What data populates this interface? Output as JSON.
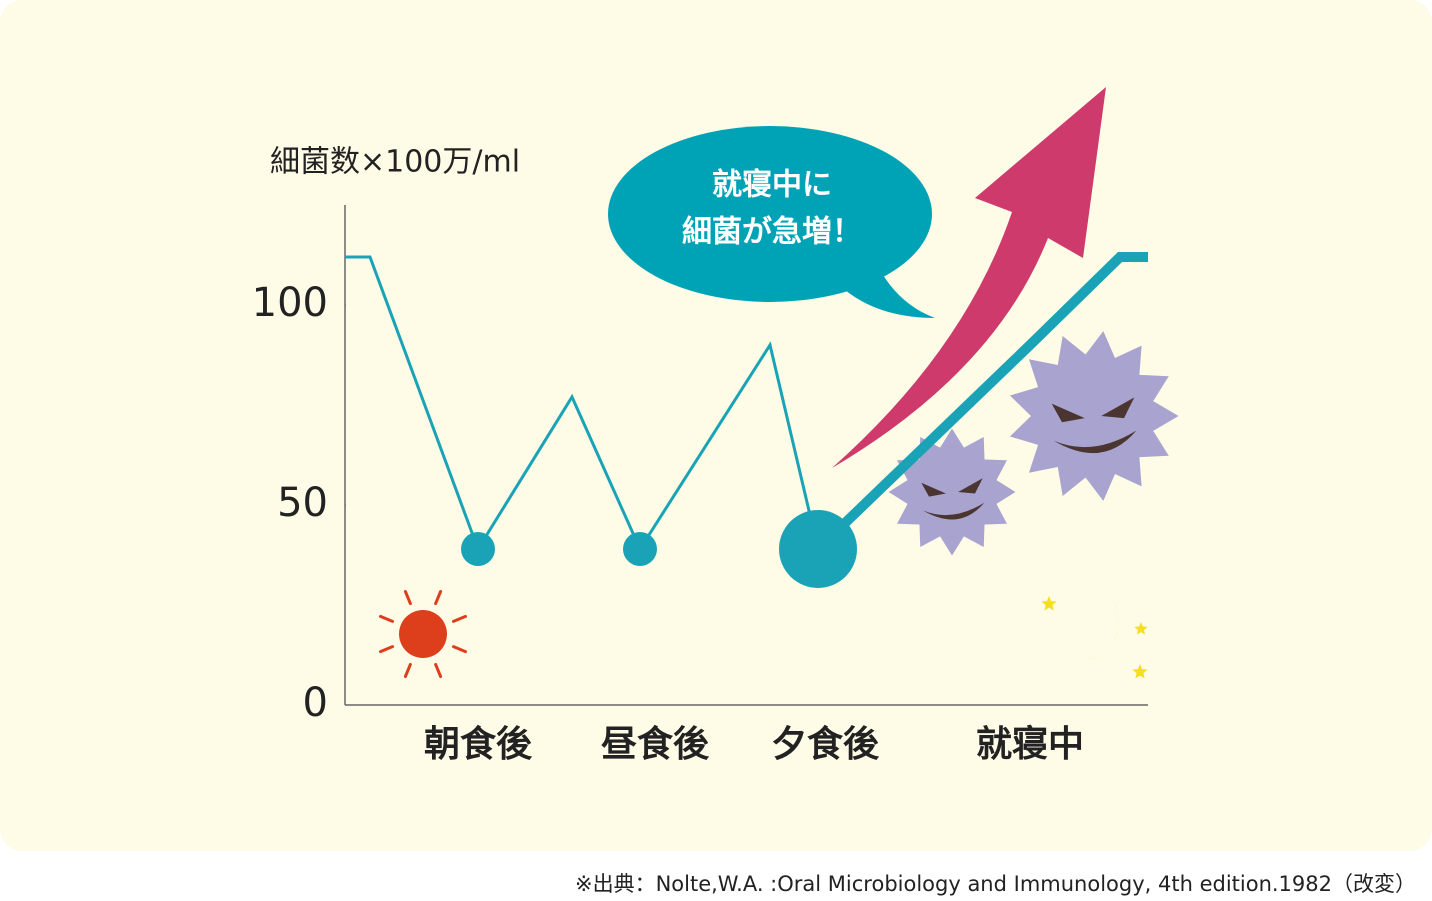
{
  "chart_data": {
    "type": "line",
    "y_label": "細菌数×100万/ml",
    "categories": [
      null,
      null,
      "朝食後",
      null,
      "昼食後",
      null,
      "夕食後",
      "就寝中",
      null,
      null
    ],
    "series": [
      {
        "color": "#1aa3b6",
        "values": [
          112,
          112,
          39,
          77,
          39,
          90,
          39,
          90,
          112,
          112
        ]
      }
    ],
    "ylim": [
      0,
      125
    ],
    "yticks": [
      0,
      50,
      100
    ],
    "annotation": [
      "就寝中に",
      "細菌が急増！"
    ],
    "source": "※出典：Nolte,W.A. :Oral Microbiology and Immunology, 4th edition.1982（改変）"
  }
}
